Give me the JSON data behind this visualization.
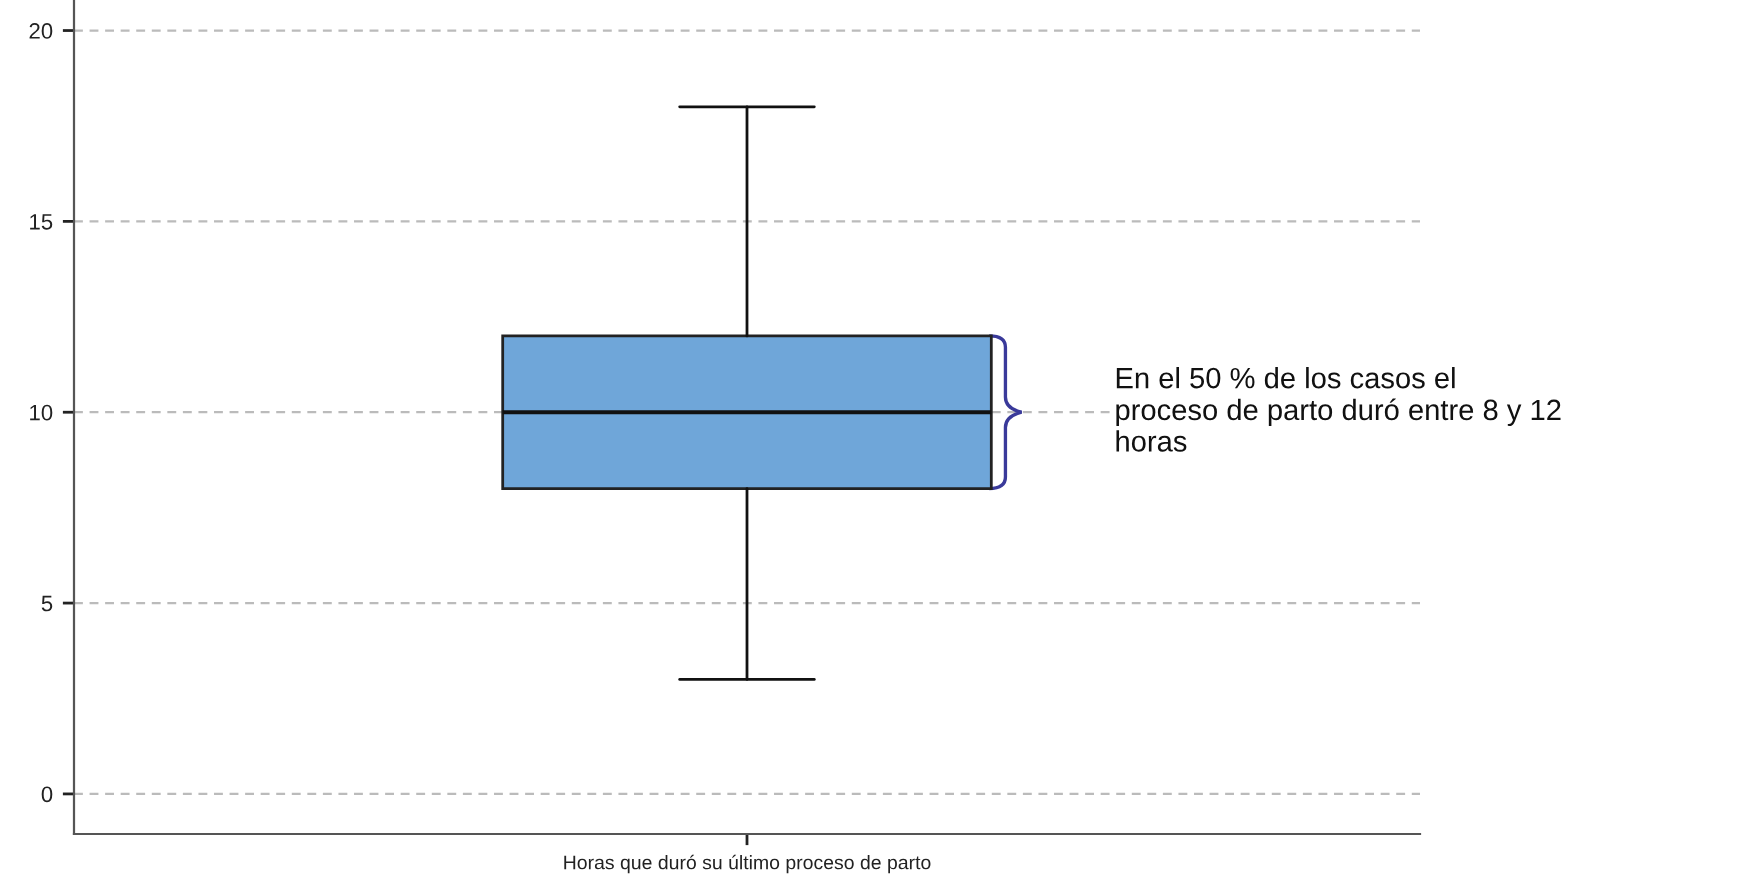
{
  "chart_data": {
    "type": "box",
    "categories": [
      "Horas que duró su último proceso de parto"
    ],
    "boxes": [
      {
        "low": 3,
        "q1": 8,
        "median": 10,
        "q3": 12,
        "high": 18
      }
    ],
    "color": "#6fa6d9",
    "ylim": [
      -1.05,
      20.8
    ],
    "yticks": [
      0,
      5,
      10,
      15,
      20
    ],
    "grid": "y",
    "annotations": [
      "En el 50 % de los casos el\nproceso de parto duró entre 8 y 12\nhoras"
    ]
  }
}
